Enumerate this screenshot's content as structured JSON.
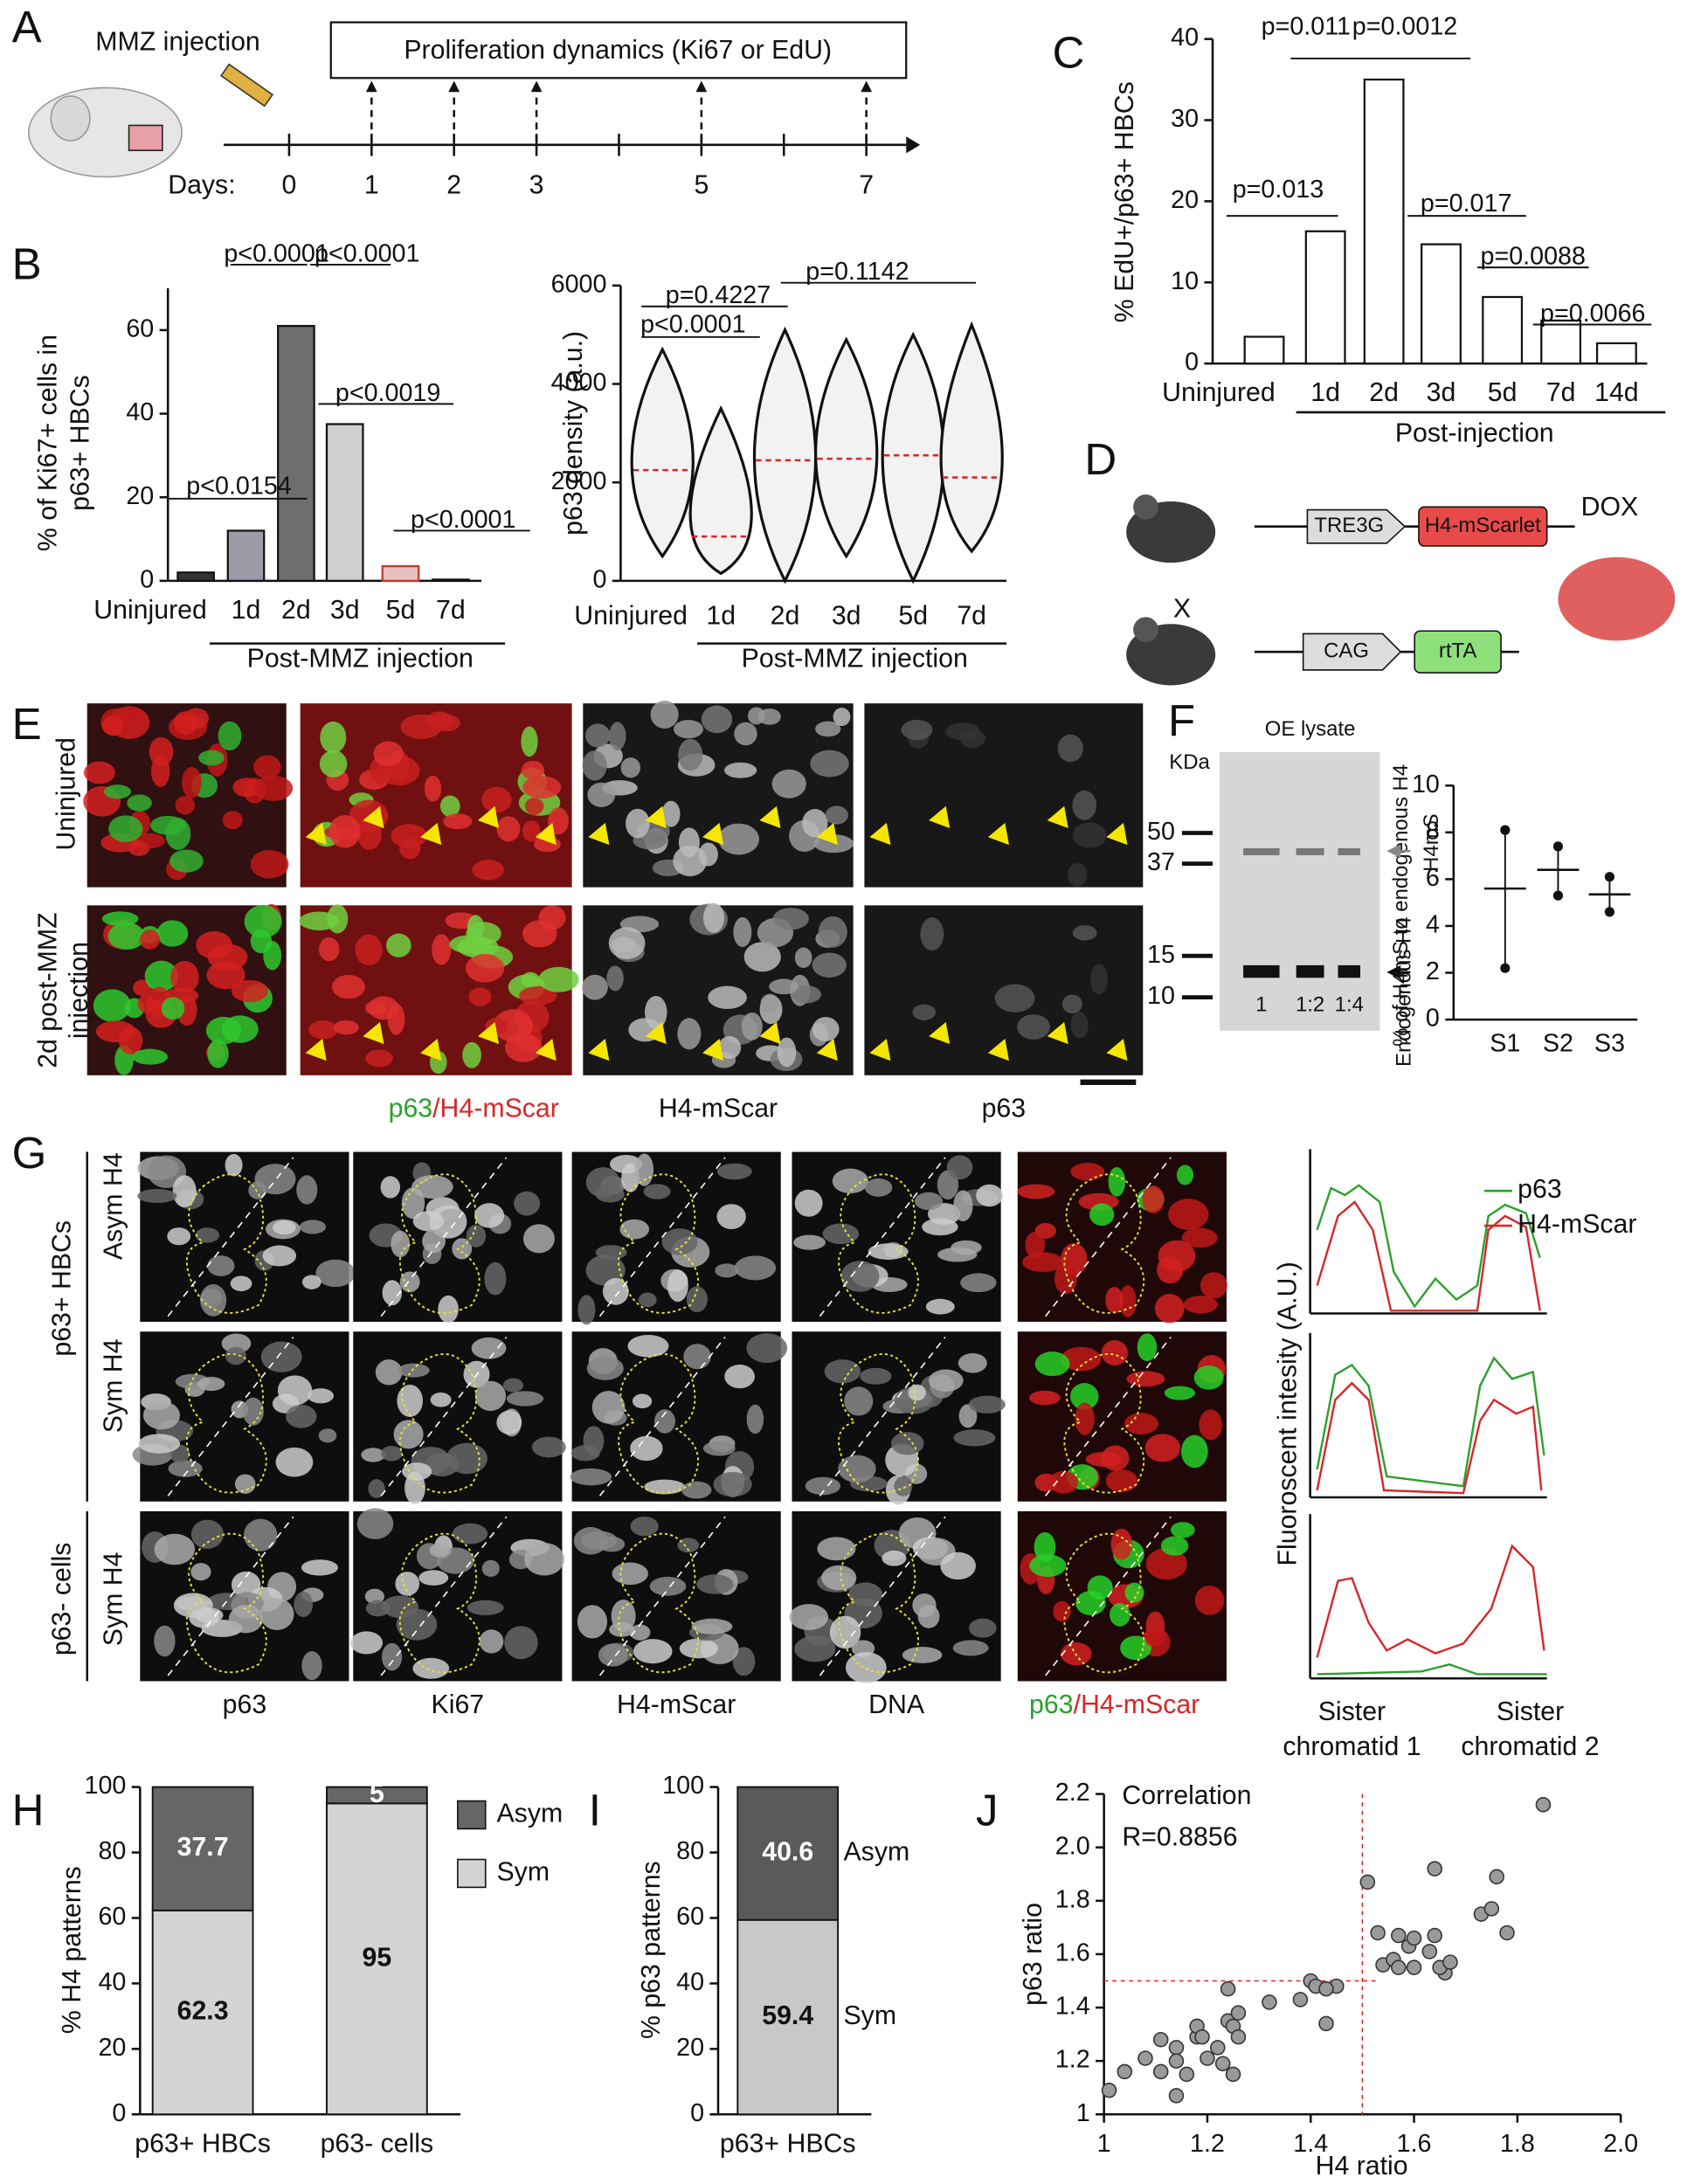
{
  "panel_labels": [
    "A",
    "B",
    "C",
    "D",
    "E",
    "F",
    "G",
    "H",
    "I",
    "J"
  ],
  "panel_a": {
    "injection": "MMZ injection",
    "box": "Proliferation dynamics (Ki67 or EdU)",
    "days_label": "Days:",
    "days": [
      0,
      1,
      2,
      3,
      5,
      7
    ]
  },
  "panel_d": {
    "promoter1": "TRE3G",
    "gene1": "H4-mScarlet",
    "cross": "X",
    "promoter2": "CAG",
    "gene2": "rtTA",
    "treatment": "DOX"
  },
  "panel_e": {
    "row1": "Uninjured",
    "row2": [
      "2d post-MMZ",
      "injection"
    ],
    "merge": [
      "p63",
      "/H4-mScar"
    ],
    "columns": [
      "H4-mScar",
      "p63"
    ]
  },
  "panel_f": {
    "title": "OE lysate",
    "unit": "KDa",
    "markers": [
      50,
      37,
      15,
      10
    ],
    "lanes": [
      "1",
      "1:2",
      "1:4"
    ],
    "band_upper": "H4mS",
    "band_lower": "Endogenous H4"
  },
  "panel_g": {
    "group1": "p63+ HBCs",
    "row1": "Asym H4",
    "row2": "Sym H4",
    "group2": "p63- cells",
    "row3": "Sym H4",
    "columns": [
      "p63",
      "Ki67",
      "H4-mScar",
      "DNA"
    ],
    "merge": [
      "p63",
      "/H4-mScar"
    ],
    "legend": [
      "p63",
      "H4-mScar"
    ],
    "ylabel": "Fluoroscent intesity (A.U.)",
    "xlabels": [
      [
        "Sister",
        "chromatid 1"
      ],
      [
        "Sister",
        "chromatid 2"
      ]
    ]
  },
  "chart_data": [
    {
      "type": "bar",
      "ylabel": [
        "% of Ki67+ cells in",
        "p63+ HBCs"
      ],
      "xlabel": "Post-MMZ injection",
      "categories": [
        "Uninjured",
        "1d",
        "2d",
        "3d",
        "5d",
        "7d"
      ],
      "values": [
        2,
        12,
        61,
        37.5,
        3.5,
        0.3
      ],
      "colors": [
        "#333333",
        "#9b9ba8",
        "#6e6e6e",
        "#cfcfcf",
        "#e8c0c0",
        "#333333"
      ],
      "ylim": [
        0,
        70
      ],
      "yticks": [
        0,
        20,
        40,
        60
      ],
      "annotations": [
        "p<0.0154",
        "p<0.0001",
        "p<0.0001",
        "p<0.0019",
        "p<0.0001"
      ]
    },
    {
      "type": "violin",
      "ylabel": "p63 density (a.u.)",
      "xlabel": "Post-MMZ injection",
      "categories": [
        "Uninjured",
        "1d",
        "2d",
        "3d",
        "5d",
        "7d"
      ],
      "values": [
        2250,
        900,
        2450,
        2480,
        2550,
        2100
      ],
      "mins": [
        500,
        150,
        0,
        500,
        0,
        600
      ],
      "maxs": [
        4700,
        3500,
        5100,
        4900,
        5000,
        5200
      ],
      "ylim": [
        0,
        6000
      ],
      "yticks": [
        0,
        2000,
        4000,
        6000
      ],
      "annotations": [
        "p<0.0001",
        "p=0.4227",
        "p=0.1142"
      ]
    },
    {
      "type": "bar",
      "ylabel": "% EdU+/p63+ HBCs",
      "xlabel": "Post-injection",
      "categories": [
        "Uninjured",
        "1d",
        "2d",
        "3d",
        "5d",
        "7d",
        "14d"
      ],
      "values": [
        3.3,
        16.3,
        35,
        14.7,
        8.2,
        5.3,
        2.5
      ],
      "colors": [
        "#ffffff",
        "#ffffff",
        "#ffffff",
        "#ffffff",
        "#ffffff",
        "#ffffff",
        "#ffffff"
      ],
      "ylim": [
        0,
        40
      ],
      "yticks": [
        0,
        10,
        20,
        30,
        40
      ],
      "annotations": [
        "p=0.013",
        "p=0.011",
        "p=0.0012",
        "p=0.017",
        "p=0.0088",
        "p=0.0066"
      ]
    },
    {
      "type": "dot",
      "ylabel": "% of H4mS to endogenous H4",
      "categories": [
        "S1",
        "S2",
        "S3"
      ],
      "points": [
        [
          8.1,
          2.2
        ],
        [
          7.4,
          5.3
        ],
        [
          6.1,
          4.6
        ]
      ],
      "values": [
        5.6,
        6.4,
        5.35
      ],
      "ylim": [
        0,
        10
      ],
      "yticks": [
        0,
        2,
        4,
        6,
        8,
        10
      ]
    },
    {
      "type": "stacked",
      "ylabel": "% H4 patterns",
      "categories": [
        "p63+ HBCs",
        "p63- cells"
      ],
      "series": [
        {
          "name": "Sym",
          "color": "#d3d3d3",
          "values": [
            62.3,
            95
          ]
        },
        {
          "name": "Asym",
          "color": "#666666",
          "values": [
            37.7,
            5
          ]
        }
      ],
      "ylim": [
        0,
        100
      ],
      "yticks": [
        0,
        20,
        40,
        60,
        80,
        100
      ],
      "legend": "right"
    },
    {
      "type": "stacked",
      "ylabel": "% p63 patterns",
      "categories": [
        "p63+ HBCs"
      ],
      "series": [
        {
          "name": "Sym",
          "color": "#c8c8c8",
          "values": [
            59.4
          ]
        },
        {
          "name": "Asym",
          "color": "#5a5a5a",
          "values": [
            40.6
          ]
        }
      ],
      "ylim": [
        0,
        100
      ],
      "yticks": [
        0,
        20,
        40,
        60,
        80,
        100
      ],
      "legend": "beside"
    },
    {
      "type": "scatter",
      "xlabel": "H4 ratio",
      "ylabel": "p63 ratio",
      "annotations": [
        "Correlation",
        "R=0.8856"
      ],
      "ref_x": 1.5,
      "ref_y": 1.5,
      "color": "#9a9a9a",
      "x": [
        1.01,
        1.04,
        1.08,
        1.11,
        1.11,
        1.14,
        1.14,
        1.14,
        1.16,
        1.18,
        1.18,
        1.19,
        1.2,
        1.22,
        1.23,
        1.24,
        1.24,
        1.25,
        1.25,
        1.26,
        1.26,
        1.32,
        1.38,
        1.4,
        1.41,
        1.43,
        1.45,
        1.43,
        1.51,
        1.53,
        1.54,
        1.57,
        1.59,
        1.6,
        1.6,
        1.63,
        1.64,
        1.64,
        1.66,
        1.65,
        1.67,
        1.73,
        1.76,
        1.75,
        1.78,
        1.85,
        1.56,
        1.57
      ],
      "values": [
        1.09,
        1.16,
        1.21,
        1.16,
        1.28,
        1.25,
        1.2,
        1.07,
        1.15,
        1.29,
        1.33,
        1.29,
        1.21,
        1.25,
        1.19,
        1.35,
        1.47,
        1.15,
        1.33,
        1.38,
        1.29,
        1.42,
        1.43,
        1.5,
        1.48,
        1.34,
        1.48,
        1.47,
        1.87,
        1.68,
        1.56,
        1.67,
        1.63,
        1.66,
        1.55,
        1.61,
        1.67,
        1.92,
        1.53,
        1.55,
        1.57,
        1.75,
        1.89,
        1.77,
        1.68,
        2.16,
        1.58,
        1.55
      ],
      "xlim": [
        1,
        2
      ],
      "xticks": [
        1,
        1.2,
        1.4,
        1.6,
        1.8,
        {
          "value": 2,
          "label": "2.0"
        }
      ],
      "ylim": [
        1,
        2.2
      ],
      "yticks": [
        1,
        1.2,
        1.4,
        1.6,
        1.8,
        {
          "value": 2,
          "label": "2.0"
        },
        2.2
      ]
    }
  ]
}
